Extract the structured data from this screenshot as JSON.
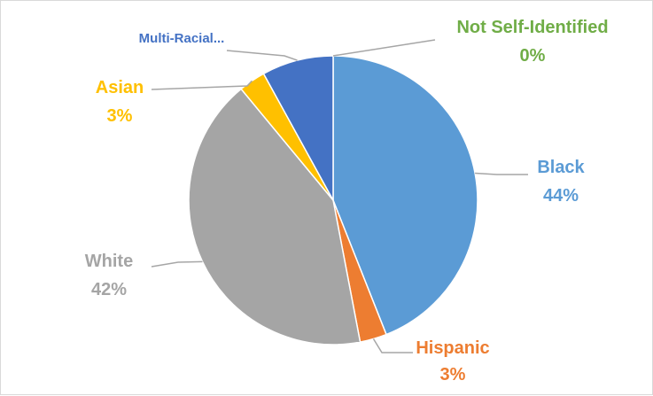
{
  "chart_data": {
    "type": "pie",
    "title": "",
    "slices": [
      {
        "name": "Black",
        "value": 44,
        "label": "44%",
        "color": "#5b9bd5"
      },
      {
        "name": "Hispanic",
        "value": 3,
        "label": "3%",
        "color": "#ed7d31"
      },
      {
        "name": "White",
        "value": 42,
        "label": "42%",
        "color": "#a5a5a5"
      },
      {
        "name": "Asian",
        "value": 3,
        "label": "3%",
        "color": "#ffc000"
      },
      {
        "name": "Multi-Racial...",
        "value": 8,
        "label": "",
        "color": "#4472c4"
      },
      {
        "name": "Not Self-Identified",
        "value": 0,
        "label": "0%",
        "color": "#70ad47"
      }
    ],
    "legend": "none",
    "label_style": "outside-with-leader-lines"
  }
}
